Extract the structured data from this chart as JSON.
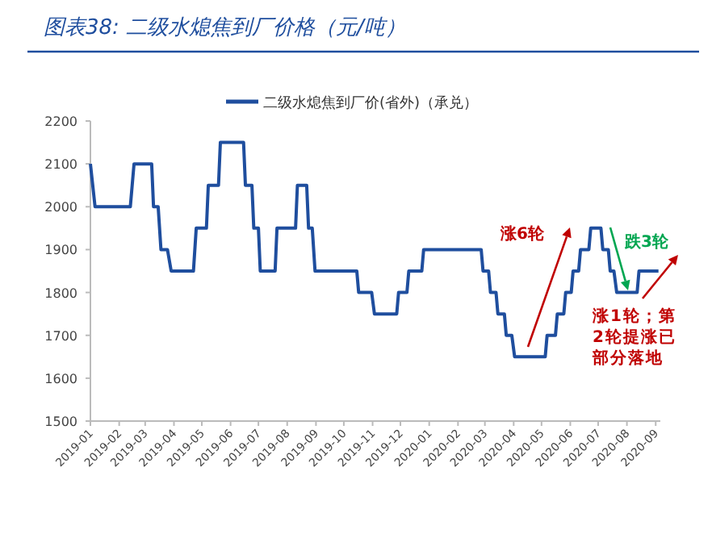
{
  "chart_data": {
    "type": "line",
    "title": "图表38: 二级水熄焦到厂价格（元/吨）",
    "x": [
      "2019-01-01",
      "2019-01-06",
      "2019-02-13",
      "2019-02-17",
      "2019-03-08",
      "2019-03-10",
      "2019-03-15",
      "2019-03-18",
      "2019-03-25",
      "2019-03-29",
      "2019-04-22",
      "2019-04-25",
      "2019-05-06",
      "2019-05-08",
      "2019-05-19",
      "2019-05-21",
      "2019-06-15",
      "2019-06-17",
      "2019-06-24",
      "2019-06-26",
      "2019-07-01",
      "2019-07-03",
      "2019-07-19",
      "2019-07-21",
      "2019-08-10",
      "2019-08-12",
      "2019-08-22",
      "2019-08-24",
      "2019-08-28",
      "2019-08-31",
      "2019-10-15",
      "2019-10-17",
      "2019-10-31",
      "2019-11-03",
      "2019-11-27",
      "2019-11-29",
      "2019-12-08",
      "2019-12-10",
      "2019-12-24",
      "2019-12-26",
      "2020-02-26",
      "2020-02-28",
      "2020-03-05",
      "2020-03-07",
      "2020-03-13",
      "2020-03-15",
      "2020-03-22",
      "2020-03-24",
      "2020-03-30",
      "2020-04-02",
      "2020-05-05",
      "2020-05-07",
      "2020-05-16",
      "2020-05-18",
      "2020-05-25",
      "2020-05-27",
      "2020-06-02",
      "2020-06-04",
      "2020-06-10",
      "2020-06-12",
      "2020-06-21",
      "2020-06-23",
      "2020-07-04",
      "2020-07-06",
      "2020-07-12",
      "2020-07-14",
      "2020-07-18",
      "2020-07-21",
      "2020-08-12",
      "2020-08-14",
      "2020-09-04"
    ],
    "series": [
      {
        "name": "二级水熄焦到厂价(省外)（承兑）",
        "color": "#1f4e9e",
        "values": [
          2100,
          2000,
          2000,
          2100,
          2100,
          2000,
          2000,
          1900,
          1900,
          1850,
          1850,
          1950,
          1950,
          2050,
          2050,
          2150,
          2150,
          2050,
          2050,
          1950,
          1950,
          1850,
          1850,
          1950,
          1950,
          2050,
          2050,
          1950,
          1950,
          1850,
          1850,
          1800,
          1800,
          1750,
          1750,
          1800,
          1800,
          1850,
          1850,
          1900,
          1900,
          1850,
          1850,
          1800,
          1800,
          1750,
          1750,
          1700,
          1700,
          1650,
          1650,
          1700,
          1700,
          1750,
          1750,
          1800,
          1800,
          1850,
          1850,
          1900,
          1900,
          1950,
          1950,
          1900,
          1900,
          1850,
          1850,
          1800,
          1800,
          1850,
          1850
        ]
      }
    ],
    "xlim": [
      "2019-01-01",
      "2020-09-06"
    ],
    "xticks": [
      "2019-01",
      "2019-02",
      "2019-03",
      "2019-04",
      "2019-05",
      "2019-06",
      "2019-07",
      "2019-08",
      "2019-09",
      "2019-10",
      "2019-11",
      "2019-12",
      "2020-01",
      "2020-02",
      "2020-03",
      "2020-04",
      "2020-05",
      "2020-06",
      "2020-07",
      "2020-08",
      "2020-09"
    ],
    "ylim": [
      1500,
      2200
    ],
    "yticks": [
      1500,
      1600,
      1700,
      1800,
      1900,
      2000,
      2100,
      2200
    ],
    "grid": false,
    "legend": "top",
    "marker": "none",
    "line_style": "solid",
    "annotations": [
      "涨6轮",
      "跌3轮",
      "涨1轮；第2轮提涨已部分落地"
    ]
  }
}
